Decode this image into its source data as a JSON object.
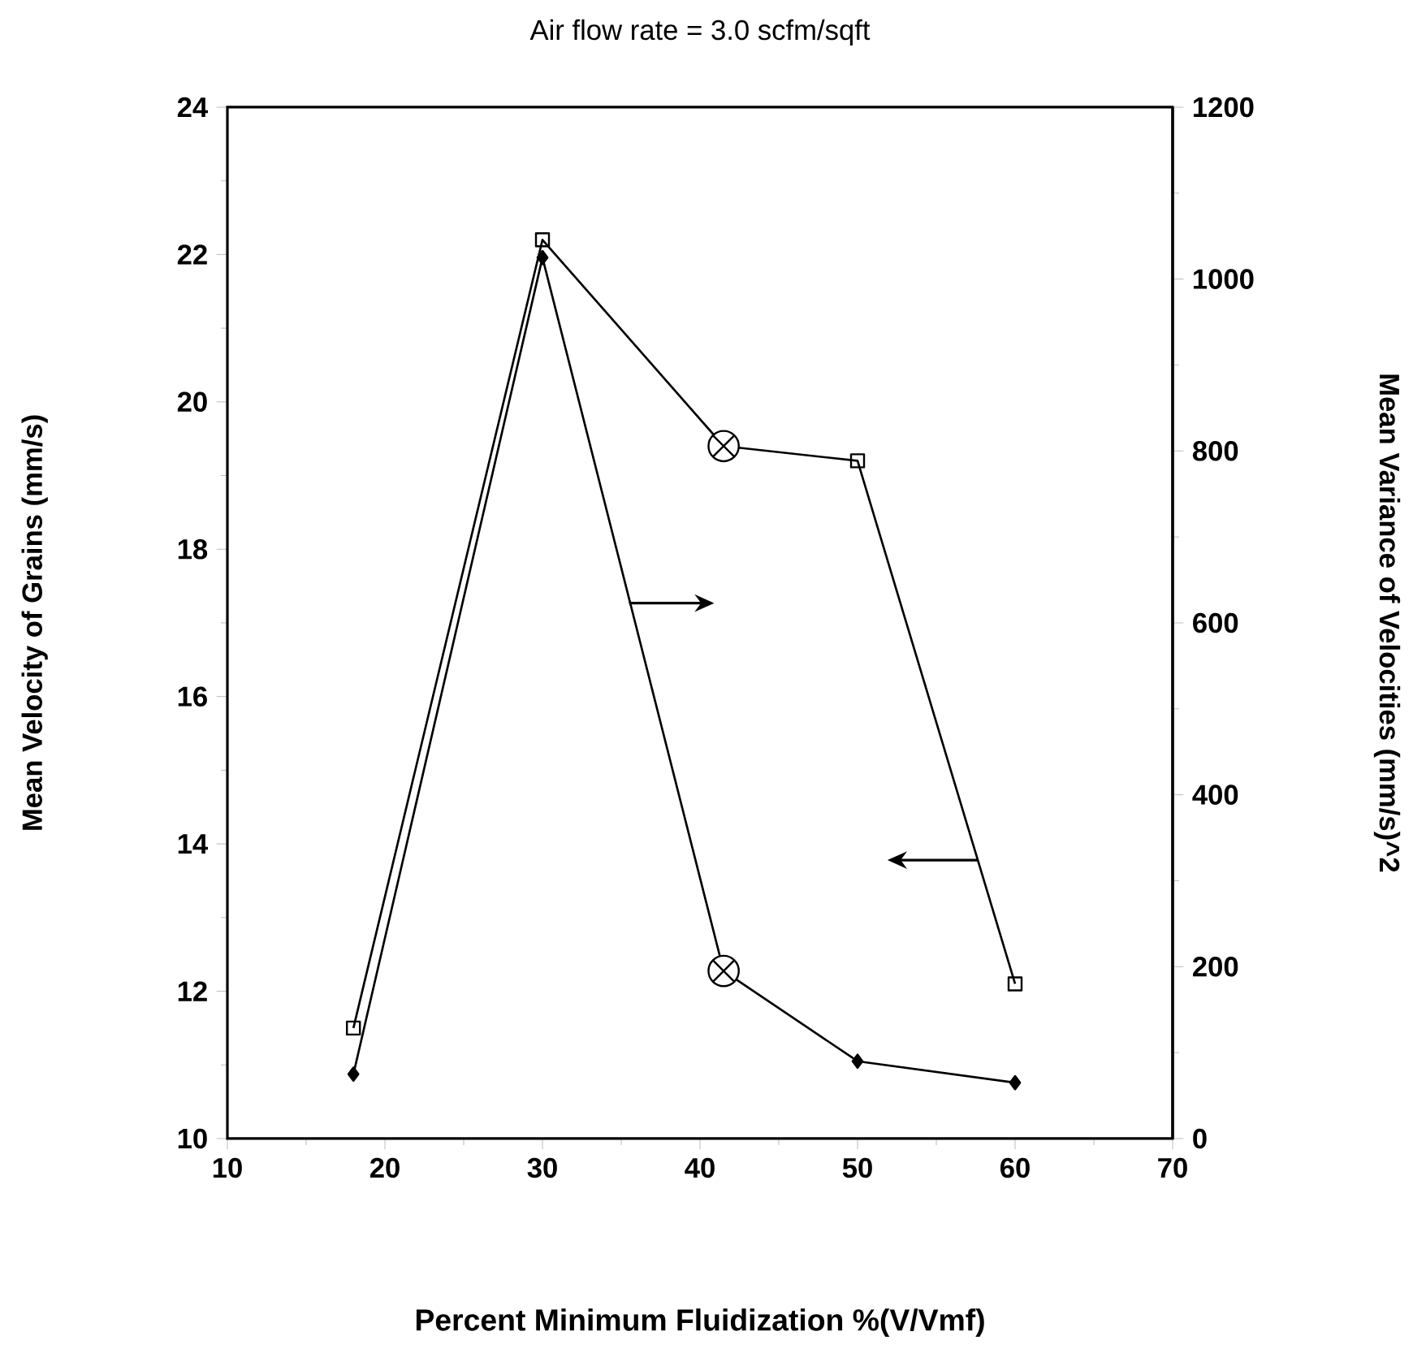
{
  "chart_data": {
    "type": "line",
    "title": "Air flow rate = 3.0 scfm/sqft",
    "xlabel": "Percent Minimum Fluidization  %(V/Vmf)",
    "ylabel": "Mean Velocity of Grains  (mm/s)",
    "y2label": "Mean Variance of Velocities  (mm/s)^2",
    "xlim": [
      10,
      70
    ],
    "xticks": [
      10,
      20,
      30,
      40,
      50,
      60,
      70
    ],
    "ylim": [
      10,
      24
    ],
    "yticks": [
      10,
      12,
      14,
      16,
      18,
      20,
      22,
      24
    ],
    "y2lim": [
      0,
      1200
    ],
    "y2ticks": [
      0,
      200,
      400,
      600,
      800,
      1000,
      1200
    ],
    "series": [
      {
        "x": [
          18,
          30,
          41.5,
          50,
          60
        ],
        "values": [
          11.5,
          22.2,
          19.4,
          19.2,
          12.1
        ],
        "marker": "square",
        "color": "#000000"
      },
      {
        "axis": "y2",
        "x": [
          18,
          30,
          41.5,
          50,
          60
        ],
        "values": [
          75,
          1025,
          195,
          90,
          65
        ],
        "marker": "diamond",
        "color": "#000000"
      },
      {
        "type": "scatter",
        "x": [
          41.5
        ],
        "values": [
          19.4
        ],
        "marker": "cross",
        "color": "#000000"
      },
      {
        "type": "scatter",
        "axis": "y2",
        "x": [
          41.5
        ],
        "values": [
          195
        ],
        "marker": "cross",
        "color": "#000000"
      }
    ]
  }
}
